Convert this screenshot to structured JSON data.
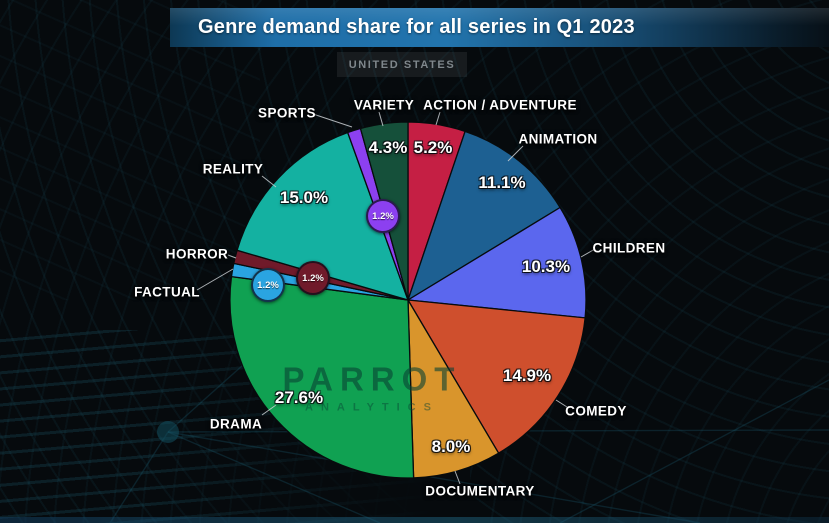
{
  "header": {
    "title": "Genre demand share for all series in Q1 2023",
    "region_tag": "UNITED STATES"
  },
  "watermark": {
    "brand": "PARROT",
    "sub": "ANALYTICS"
  },
  "chart_data": {
    "type": "pie",
    "title": "Genre demand share for all series in Q1 2023",
    "region": "United States",
    "start_angle": "12-o-clock, clockwise",
    "unit": "percent",
    "slices": [
      {
        "id": "action-adventure",
        "label": "ACTION / ADVENTURE",
        "value": 5.2,
        "value_label": "5.2%",
        "color": "#c51f44"
      },
      {
        "id": "animation",
        "label": "ANIMATION",
        "value": 11.1,
        "value_label": "11.1%",
        "color": "#1d6092"
      },
      {
        "id": "children",
        "label": "CHILDREN",
        "value": 10.3,
        "value_label": "10.3%",
        "color": "#5b67ee"
      },
      {
        "id": "comedy",
        "label": "COMEDY",
        "value": 14.9,
        "value_label": "14.9%",
        "color": "#cf4f2d"
      },
      {
        "id": "documentary",
        "label": "DOCUMENTARY",
        "value": 8.0,
        "value_label": "8.0%",
        "color": "#d9952c"
      },
      {
        "id": "drama",
        "label": "DRAMA",
        "value": 27.6,
        "value_label": "27.6%",
        "color": "#10a152"
      },
      {
        "id": "factual",
        "label": "FACTUAL",
        "value": 1.2,
        "value_label": "1.2%",
        "color": "#2aa4e1"
      },
      {
        "id": "horror",
        "label": "HORROR",
        "value": 1.2,
        "value_label": "1.2%",
        "color": "#701a2a"
      },
      {
        "id": "reality",
        "label": "REALITY",
        "value": 15.0,
        "value_label": "15.0%",
        "color": "#14b1a1"
      },
      {
        "id": "sports",
        "label": "SPORTS",
        "value": 1.2,
        "value_label": "1.2%",
        "color": "#8c40f0"
      },
      {
        "id": "variety",
        "label": "VARIETY",
        "value": 4.3,
        "value_label": "4.3%",
        "color": "#15503a"
      }
    ]
  }
}
